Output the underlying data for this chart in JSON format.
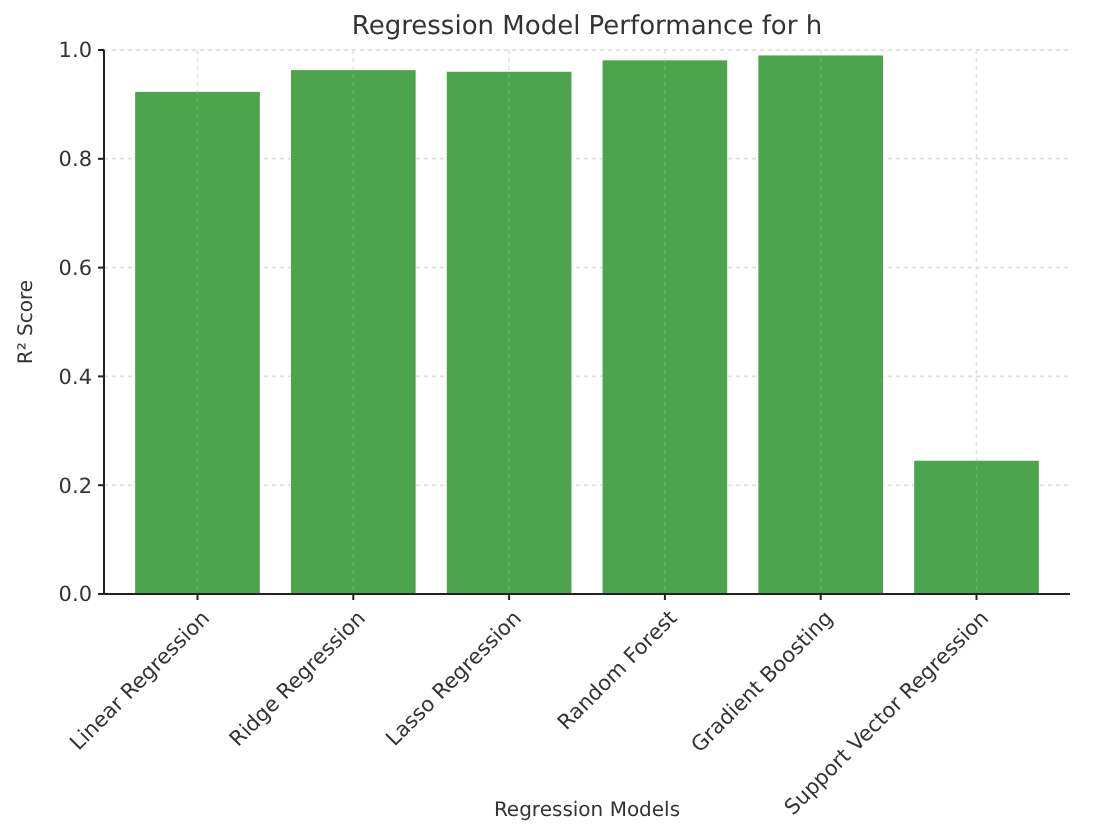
{
  "chart_data": {
    "type": "bar",
    "title": "Regression Model Performance for h",
    "xlabel": "Regression Models",
    "ylabel": "R² Score",
    "categories": [
      "Linear Regression",
      "Ridge Regression",
      "Lasso Regression",
      "Random Forest",
      "Gradient Boosting",
      "Support Vector Regression"
    ],
    "values": [
      0.923,
      0.963,
      0.96,
      0.981,
      0.99,
      0.245
    ],
    "color": "#4ca44c",
    "ylim": [
      0,
      1
    ],
    "yticks": [
      {
        "value": 0,
        "label": "0.0"
      },
      {
        "value": 0.2,
        "label": "0.2"
      },
      {
        "value": 0.4,
        "label": "0.4"
      },
      {
        "value": 0.6,
        "label": "0.6"
      },
      {
        "value": 0.8,
        "label": "0.8"
      },
      {
        "value": 1,
        "label": "1.0"
      }
    ],
    "grid": true
  }
}
